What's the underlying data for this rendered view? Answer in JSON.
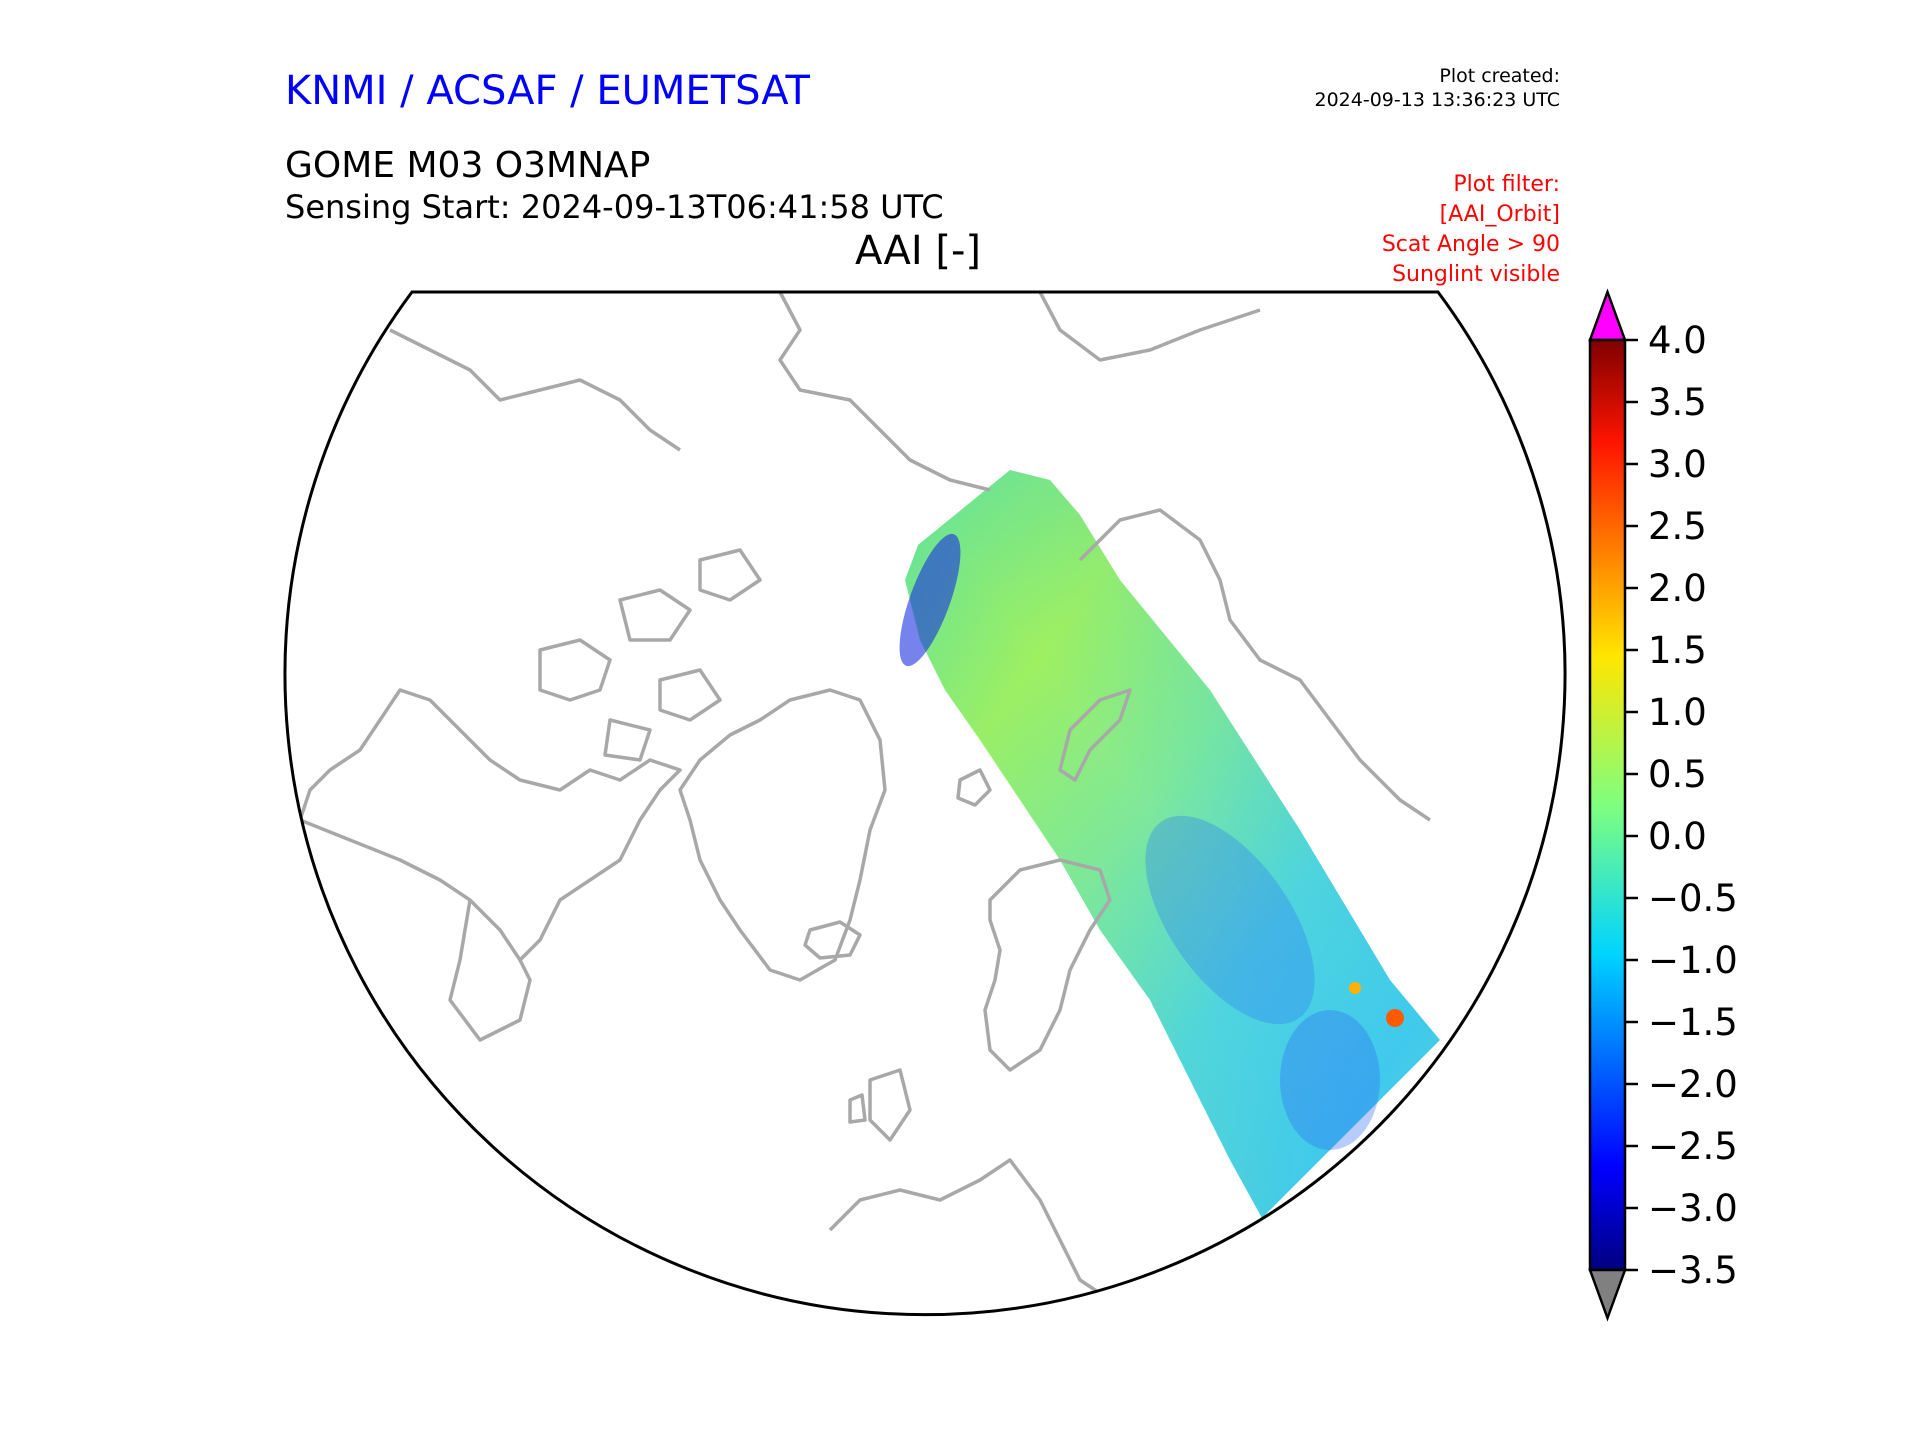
{
  "header": {
    "organization": "KNMI / ACSAF / EUMETSAT",
    "product": "GOME M03 O3MNAP",
    "sensing_start": "Sensing Start: 2024-09-13T06:41:58 UTC",
    "quantity": "AAI [-]"
  },
  "plot_created": {
    "label": "Plot created:",
    "timestamp": "2024-09-13 13:36:23 UTC"
  },
  "plot_filter": {
    "label": "Plot filter:",
    "lines": [
      "[AAI_Orbit]",
      "Scat Angle > 90",
      "Sunglint visible"
    ]
  },
  "colorbar": {
    "min": -3.5,
    "max": 4.0,
    "ticks": [
      "4.0",
      "3.5",
      "3.0",
      "2.5",
      "2.0",
      "1.5",
      "1.0",
      "0.5",
      "0.0",
      "−0.5",
      "−1.0",
      "−1.5",
      "−2.0",
      "−2.5",
      "−3.0",
      "−3.5"
    ],
    "over_color": "#ff00ff",
    "under_color": "#808080",
    "colormap": "jet"
  },
  "colors": {
    "coastline": "#a8a8a8",
    "frame": "#000000"
  }
}
